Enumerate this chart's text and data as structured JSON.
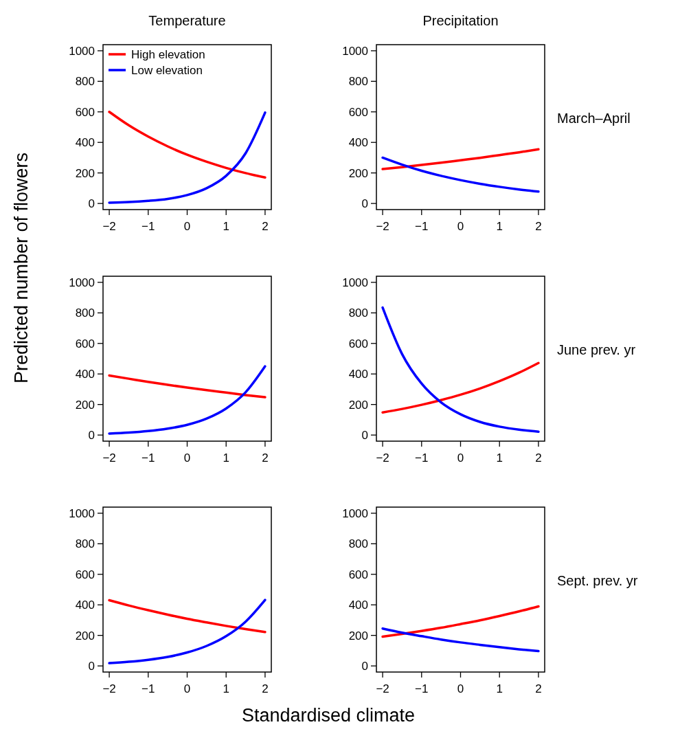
{
  "chart_data": [
    {
      "type": "line",
      "title": "Temperature",
      "x": [
        -2,
        -1.5,
        -1,
        -0.5,
        0,
        0.5,
        1,
        1.5,
        2
      ],
      "xlim": [
        -2.16,
        2.16
      ],
      "ylim": [
        -40,
        1040
      ],
      "xticks": [
        -2,
        -1,
        0,
        1,
        2
      ],
      "yticks": [
        0,
        200,
        400,
        600,
        800,
        1000
      ],
      "legend": "top left",
      "series": [
        {
          "name": "High elevation",
          "color": "#ff0000",
          "values": [
            600,
            512,
            438,
            374,
            319,
            273,
            233,
            199,
            170
          ]
        },
        {
          "name": "Low elevation",
          "color": "#0000ff",
          "values": [
            5,
            9,
            17,
            30,
            55,
            100,
            181,
            329,
            595
          ]
        }
      ]
    },
    {
      "type": "line",
      "title": "Precipitation",
      "annotations": [
        "March–April"
      ],
      "x": [
        -2,
        -1.5,
        -1,
        -0.5,
        0,
        0.5,
        1,
        1.5,
        2
      ],
      "xlim": [
        -2.16,
        2.16
      ],
      "ylim": [
        -40,
        1040
      ],
      "xticks": [
        -2,
        -1,
        0,
        1,
        2
      ],
      "yticks": [
        0,
        200,
        400,
        600,
        800,
        1000
      ],
      "series": [
        {
          "color": "#ff0000",
          "values": [
            225,
            238,
            252,
            267,
            283,
            299,
            317,
            335,
            355
          ]
        },
        {
          "color": "#0000ff",
          "values": [
            300,
            254,
            214,
            181,
            153,
            129,
            109,
            92,
            78
          ]
        }
      ]
    },
    {
      "type": "line",
      "ylabel": "Predicted number of flowers",
      "x": [
        -2,
        -1.5,
        -1,
        -0.5,
        0,
        0.5,
        1,
        1.5,
        2
      ],
      "xlim": [
        -2.16,
        2.16
      ],
      "ylim": [
        -40,
        1040
      ],
      "xticks": [
        -2,
        -1,
        0,
        1,
        2
      ],
      "yticks": [
        0,
        200,
        400,
        600,
        800,
        1000
      ],
      "series": [
        {
          "color": "#ff0000",
          "values": [
            390,
            369,
            348,
            329,
            311,
            294,
            278,
            262,
            248
          ]
        },
        {
          "color": "#0000ff",
          "values": [
            10,
            16,
            26,
            42,
            67,
            108,
            174,
            280,
            450
          ]
        }
      ]
    },
    {
      "type": "line",
      "annotations": [
        "June prev. yr"
      ],
      "x": [
        -2,
        -1.5,
        -1,
        -0.5,
        0,
        0.5,
        1,
        1.5,
        2
      ],
      "xlim": [
        -2.16,
        2.16
      ],
      "ylim": [
        -40,
        1040
      ],
      "xticks": [
        -2,
        -1,
        0,
        1,
        2
      ],
      "yticks": [
        0,
        200,
        400,
        600,
        800,
        1000
      ],
      "series": [
        {
          "color": "#ff0000",
          "values": [
            148,
            171,
            198,
            229,
            264,
            305,
            353,
            408,
            472
          ]
        },
        {
          "color": "#0000ff",
          "values": [
            835,
            530,
            337,
            214,
            136,
            86,
            55,
            35,
            22
          ]
        }
      ]
    },
    {
      "type": "line",
      "xlabel": "Standardised climate",
      "x": [
        -2,
        -1.5,
        -1,
        -0.5,
        0,
        0.5,
        1,
        1.5,
        2
      ],
      "xlim": [
        -2.16,
        2.16
      ],
      "ylim": [
        -40,
        1040
      ],
      "xticks": [
        -2,
        -1,
        0,
        1,
        2
      ],
      "yticks": [
        0,
        200,
        400,
        600,
        800,
        1000
      ],
      "series": [
        {
          "color": "#ff0000",
          "values": [
            430,
            396,
            365,
            336,
            309,
            285,
            262,
            241,
            222
          ]
        },
        {
          "color": "#0000ff",
          "values": [
            18,
            27,
            40,
            59,
            88,
            131,
            195,
            290,
            432
          ]
        }
      ]
    },
    {
      "type": "line",
      "annotations": [
        "Sept. prev. yr"
      ],
      "x": [
        -2,
        -1.5,
        -1,
        -0.5,
        0,
        0.5,
        1,
        1.5,
        2
      ],
      "xlim": [
        -2.16,
        2.16
      ],
      "ylim": [
        -40,
        1040
      ],
      "xticks": [
        -2,
        -1,
        0,
        1,
        2
      ],
      "yticks": [
        0,
        200,
        400,
        600,
        800,
        1000
      ],
      "series": [
        {
          "color": "#ff0000",
          "values": [
            192,
            210,
            229,
            250,
            274,
            299,
            327,
            357,
            390
          ]
        },
        {
          "color": "#0000ff",
          "values": [
            245,
            218,
            195,
            173,
            154,
            138,
            123,
            109,
            97
          ]
        }
      ]
    }
  ]
}
